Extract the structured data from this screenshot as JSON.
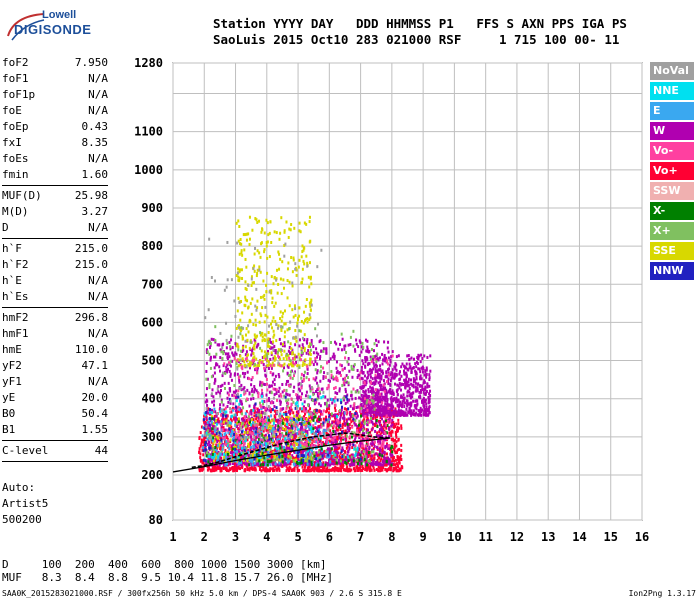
{
  "logo": {
    "line1": "Lowell",
    "line2": "DIGISONDE"
  },
  "header": {
    "line1": "Station YYYY DAY   DDD HHMMSS P1   FFS S AXN PPS IGA PS",
    "line2": "SaoLuis 2015 Oct10 283 021000 RSF     1 715 100 00- 11"
  },
  "params": [
    {
      "name": "foF2",
      "value": "7.950"
    },
    {
      "name": "foF1",
      "value": "N/A"
    },
    {
      "name": "foF1p",
      "value": "N/A"
    },
    {
      "name": "foE",
      "value": "N/A"
    },
    {
      "name": "foEp",
      "value": "0.43"
    },
    {
      "name": "fxI",
      "value": "8.35"
    },
    {
      "name": "foEs",
      "value": "N/A"
    },
    {
      "name": "fmin",
      "value": "1.60"
    },
    {
      "sep": true
    },
    {
      "name": "MUF(D)",
      "value": "25.98"
    },
    {
      "name": "M(D)",
      "value": "3.27"
    },
    {
      "name": "D",
      "value": "N/A"
    },
    {
      "sep": true
    },
    {
      "name": "h`F",
      "value": "215.0"
    },
    {
      "name": "h`F2",
      "value": "215.0"
    },
    {
      "name": "h`E",
      "value": "N/A"
    },
    {
      "name": "h`Es",
      "value": "N/A"
    },
    {
      "sep": true
    },
    {
      "name": "hmF2",
      "value": "296.8"
    },
    {
      "name": "hmF1",
      "value": "N/A"
    },
    {
      "name": "hmE",
      "value": "110.0"
    },
    {
      "name": "yF2",
      "value": "47.1"
    },
    {
      "name": "yF1",
      "value": "N/A"
    },
    {
      "name": "yE",
      "value": "20.0"
    },
    {
      "name": "B0",
      "value": "50.4"
    },
    {
      "name": "B1",
      "value": "1.55"
    },
    {
      "sep": true
    },
    {
      "name": "C-level",
      "value": "44"
    },
    {
      "sep": true
    }
  ],
  "notes": {
    "line1": "Auto:",
    "line2": "Artist5",
    "line3": "500200"
  },
  "muf_table": {
    "d_row": "D     100  200  400  600  800 1000 1500 3000 [km]",
    "muf_row": "MUF   8.3  8.4  8.8  9.5 10.4 11.8 15.7 26.0 [MHz]"
  },
  "footer": {
    "left": "SAA0K_2015283021000.RSF / 300fx256h 50 kHz 5.0 km / DPS-4 SAA0K 903 / 2.6 S 315.8 E",
    "right": "Ion2Png 1.3.17"
  },
  "legend": [
    {
      "label": "NoVal",
      "color": "#a0a0a0"
    },
    {
      "label": "NNE",
      "color": "#00e0f0"
    },
    {
      "label": "E",
      "color": "#3aa8f0"
    },
    {
      "label": "W",
      "color": "#b000b0"
    },
    {
      "label": "Vo-",
      "color": "#ff40a0"
    },
    {
      "label": "Vo+",
      "color": "#ff0033"
    },
    {
      "label": "SSW",
      "color": "#f0b0b0"
    },
    {
      "label": "X-",
      "color": "#008000"
    },
    {
      "label": "X+",
      "color": "#80c060"
    },
    {
      "label": "SSE",
      "color": "#d8d800"
    },
    {
      "label": "NNW",
      "color": "#2020c0"
    }
  ],
  "chart_data": {
    "type": "scatter",
    "xlabel": "",
    "ylabel": "",
    "xlim": [
      1,
      16
    ],
    "ylim": [
      80,
      1280
    ],
    "x_ticks": [
      1,
      2,
      3,
      4,
      5,
      6,
      7,
      8,
      9,
      10,
      11,
      12,
      13,
      14,
      15,
      16
    ],
    "y_ticks": [
      80,
      200,
      300,
      400,
      500,
      600,
      700,
      800,
      900,
      1000,
      1100,
      1200,
      1280
    ],
    "x_tick_labels": [
      "1",
      "2",
      "3",
      "4",
      "5",
      "6",
      "7",
      "8",
      "9",
      "10",
      "11",
      "12",
      "13",
      "14",
      "15",
      "16"
    ],
    "y_tick_labels": [
      "80",
      "200",
      "300",
      "400",
      "500",
      "600",
      "700",
      "800",
      "900",
      "1000",
      "1100",
      "",
      "1280"
    ],
    "grid": true,
    "trace_upper": {
      "x": [
        1.6,
        2.0,
        2.5,
        3.0,
        3.5,
        4.0,
        4.5,
        5.0,
        5.5,
        6.0,
        6.5,
        7.0,
        7.4,
        7.7,
        7.95
      ],
      "y": [
        220,
        225,
        235,
        248,
        260,
        272,
        283,
        292,
        300,
        305,
        310,
        305,
        300,
        298,
        297
      ]
    },
    "trace_lower": {
      "x": [
        1.0,
        2.0,
        3.0,
        4.0,
        5.0,
        6.0,
        7.0,
        7.5,
        7.95
      ],
      "y": [
        208,
        222,
        238,
        252,
        265,
        278,
        289,
        293,
        297
      ]
    },
    "echo_regions": [
      {
        "color": "#ff0033",
        "x": [
          1.8,
          8.3
        ],
        "y": [
          215,
          380
        ],
        "density": 1700
      },
      {
        "color": "#b000b0",
        "x": [
          2.0,
          8.0
        ],
        "y": [
          230,
          560
        ],
        "density": 1500
      },
      {
        "color": "#b000b0",
        "x": [
          7.0,
          9.2
        ],
        "y": [
          360,
          520
        ],
        "density": 700
      },
      {
        "color": "#d8d800",
        "x": [
          3.0,
          5.4
        ],
        "y": [
          490,
          880
        ],
        "density": 420
      },
      {
        "color": "#d8d800",
        "x": [
          2.2,
          5.5
        ],
        "y": [
          240,
          360
        ],
        "density": 200
      },
      {
        "color": "#80c060",
        "x": [
          2.0,
          7.5
        ],
        "y": [
          240,
          600
        ],
        "density": 300
      },
      {
        "color": "#3aa8f0",
        "x": [
          1.9,
          6.0
        ],
        "y": [
          230,
          380
        ],
        "density": 220
      },
      {
        "color": "#00e0f0",
        "x": [
          2.0,
          7.0
        ],
        "y": [
          250,
          420
        ],
        "density": 100
      },
      {
        "color": "#008000",
        "x": [
          2.0,
          8.0
        ],
        "y": [
          230,
          360
        ],
        "density": 120
      },
      {
        "color": "#ff40a0",
        "x": [
          2.5,
          8.0
        ],
        "y": [
          280,
          520
        ],
        "density": 300
      },
      {
        "color": "#2020c0",
        "x": [
          1.9,
          7.0
        ],
        "y": [
          240,
          420
        ],
        "density": 100
      },
      {
        "color": "#a0a0a0",
        "x": [
          2.0,
          6.0
        ],
        "y": [
          300,
          850
        ],
        "density": 120
      }
    ]
  }
}
